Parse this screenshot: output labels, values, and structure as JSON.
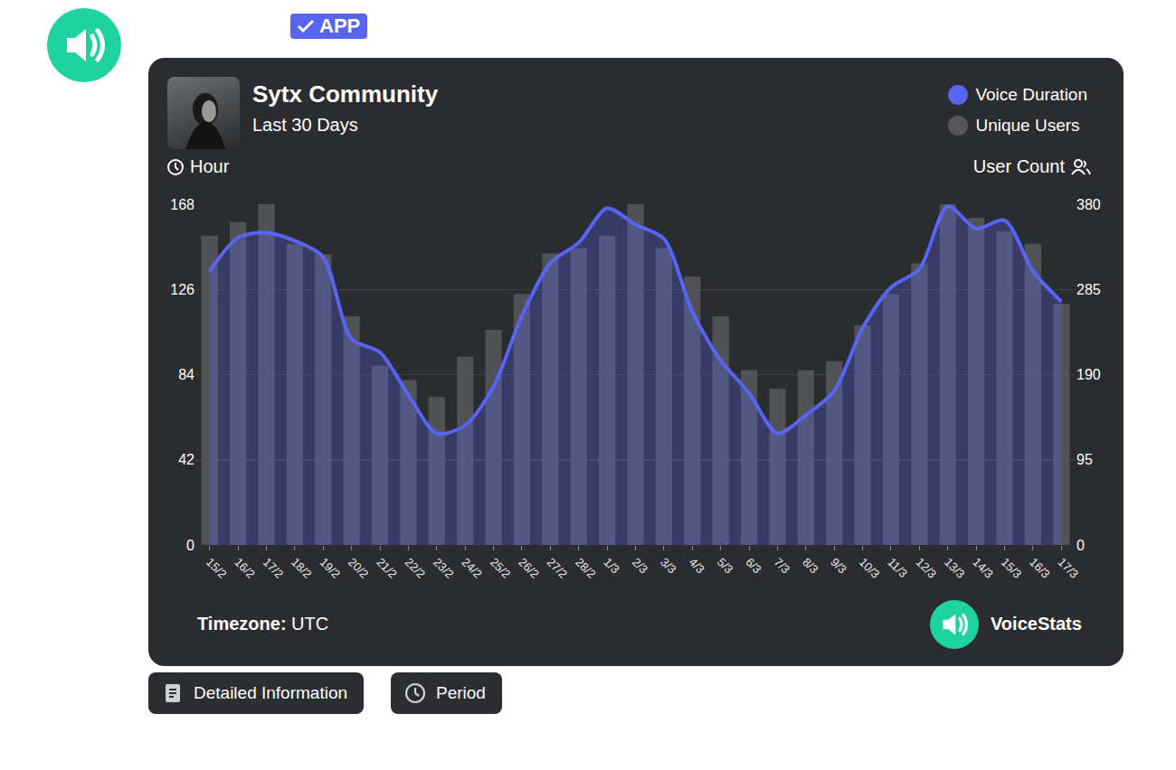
{
  "header": {
    "badge": "APP"
  },
  "chart_data": {
    "type": "bar",
    "title": "Sytx Community",
    "subtitle": "Last 30 Days",
    "ylabel": "Hour",
    "y2label": "User Count",
    "categories": [
      "15/2",
      "16/2",
      "17/2",
      "18/2",
      "19/2",
      "20/2",
      "21/2",
      "22/2",
      "23/2",
      "24/2",
      "25/2",
      "26/2",
      "27/2",
      "28/2",
      "1/3",
      "2/3",
      "3/3",
      "4/3",
      "5/3",
      "6/3",
      "7/3",
      "8/3",
      "9/3",
      "10/3",
      "11/3",
      "12/3",
      "13/3",
      "14/3",
      "15/3",
      "16/3",
      "17/3"
    ],
    "series": [
      {
        "name": "Voice Duration",
        "type": "line",
        "color": "#5865f2",
        "line_style": "smooth",
        "values": [
          135,
          151.5,
          154,
          150,
          142,
          101.6,
          95,
          74,
          55,
          59,
          78,
          113,
          139,
          149,
          166,
          158,
          151,
          115,
          91,
          75,
          55,
          64,
          76,
          107,
          127,
          136,
          167,
          156,
          160,
          135,
          120
        ]
      },
      {
        "name": "Unique Users",
        "type": "bar",
        "color": "#55565b",
        "axis": "y2",
        "values": [
          345,
          360,
          380,
          336,
          324,
          255,
          200,
          184,
          165,
          210,
          240,
          280,
          325,
          331,
          345,
          380,
          331,
          299,
          255,
          195,
          174,
          195,
          205,
          245,
          280,
          314,
          380,
          365,
          350,
          336,
          269
        ]
      }
    ],
    "ylim": [
      0,
      168
    ],
    "yticks": [
      0,
      42,
      84,
      126,
      168
    ],
    "y2lim": [
      0,
      380
    ],
    "y2ticks": [
      0,
      95,
      190,
      285,
      380
    ],
    "grid": true,
    "legend": "upper right"
  },
  "footer": {
    "timezone_label": "Timezone:",
    "timezone": "UTC",
    "brand": "VoiceStats"
  },
  "buttons": [
    "Detailed Information",
    "Period"
  ]
}
